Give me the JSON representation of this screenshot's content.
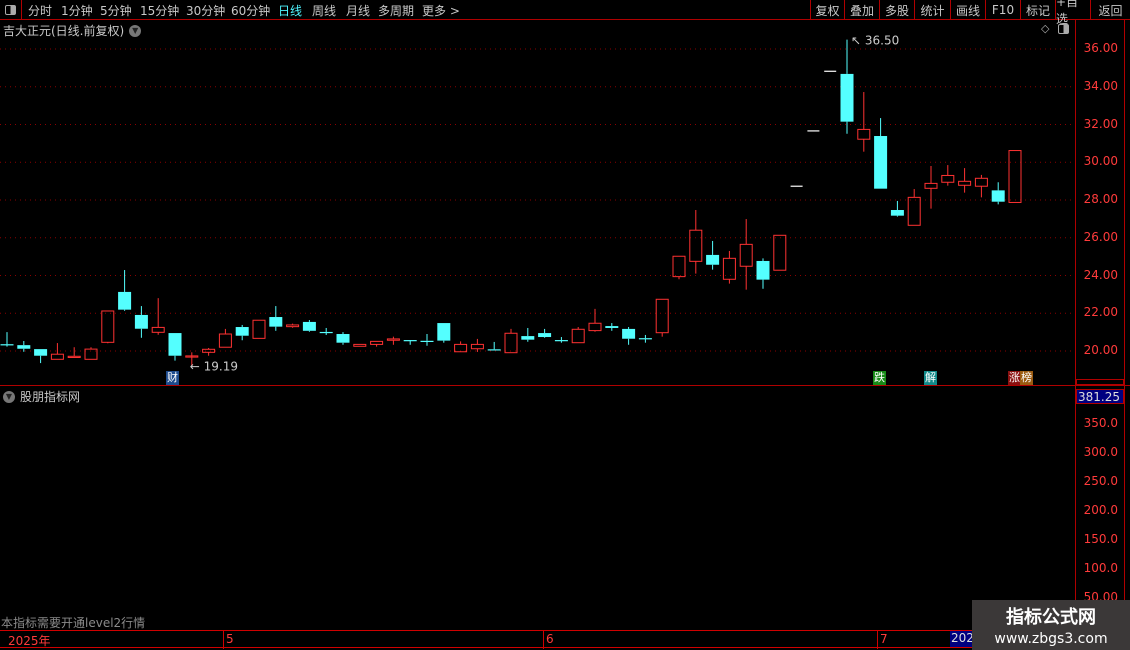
{
  "toolbar": {
    "periods": [
      "分时",
      "1分钟",
      "5分钟",
      "15分钟",
      "30分钟",
      "60分钟",
      "日线",
      "周线",
      "月线",
      "多周期",
      "更多 >"
    ],
    "active_period": "日线",
    "buttons": [
      "复权",
      "叠加",
      "多股",
      "统计",
      "画线",
      "F10",
      "标记",
      "+自选",
      "返回"
    ]
  },
  "main_chart": {
    "title": "吉大正元(日线.前复权)",
    "y_ticks": [
      "36.00",
      "34.00",
      "32.00",
      "30.00",
      "28.00",
      "26.00",
      "24.00",
      "22.00",
      "20.00"
    ],
    "high_label": "36.50",
    "low_label": "19.19",
    "markers": [
      "财",
      "跌",
      "解",
      "涨",
      "榜"
    ],
    "colors": {
      "up": "#ff3232",
      "down": "#54ffff",
      "flat": "#ffffff",
      "grid": "#8b0000"
    }
  },
  "chart_data": {
    "type": "candlestick",
    "ylim": [
      18.6,
      36.9
    ],
    "ohlc": [
      [
        20.36,
        21.0,
        20.23,
        20.35
      ],
      [
        20.31,
        20.53,
        19.96,
        20.12
      ],
      [
        20.1,
        20.1,
        19.36,
        19.75
      ],
      [
        19.56,
        20.42,
        19.56,
        19.83
      ],
      [
        19.67,
        20.2,
        19.67,
        19.72
      ],
      [
        19.56,
        20.2,
        19.56,
        20.1
      ],
      [
        20.46,
        22.12,
        20.41,
        22.12
      ],
      [
        23.13,
        24.29,
        22.13,
        22.19
      ],
      [
        21.91,
        22.38,
        20.7,
        21.18
      ],
      [
        20.99,
        22.8,
        20.86,
        21.25
      ],
      [
        20.95,
        20.95,
        19.49,
        19.75
      ],
      [
        19.73,
        19.93,
        19.19,
        19.74
      ],
      [
        19.93,
        20.16,
        19.75,
        20.09
      ],
      [
        20.2,
        21.17,
        20.2,
        20.9
      ],
      [
        21.27,
        21.38,
        20.57,
        20.81
      ],
      [
        20.67,
        21.63,
        20.67,
        21.63
      ],
      [
        21.8,
        22.38,
        21.07,
        21.29
      ],
      [
        21.29,
        21.45,
        21.23,
        21.38
      ],
      [
        21.54,
        21.64,
        21.02,
        21.07
      ],
      [
        21.01,
        21.22,
        20.85,
        21.0
      ],
      [
        20.9,
        21.0,
        20.33,
        20.44
      ],
      [
        20.25,
        20.35,
        20.25,
        20.35
      ],
      [
        20.35,
        20.51,
        20.23,
        20.51
      ],
      [
        20.57,
        20.76,
        20.33,
        20.64
      ],
      [
        20.58,
        20.58,
        20.33,
        20.57
      ],
      [
        20.54,
        20.9,
        20.28,
        20.53
      ],
      [
        21.48,
        21.48,
        20.44,
        20.55
      ],
      [
        19.96,
        20.51,
        19.96,
        20.35
      ],
      [
        20.12,
        20.64,
        19.95,
        20.35
      ],
      [
        20.09,
        20.48,
        20.04,
        20.04
      ],
      [
        19.91,
        21.17,
        19.91,
        20.94
      ],
      [
        20.79,
        21.22,
        20.49,
        20.6
      ],
      [
        20.95,
        21.17,
        20.7,
        20.74
      ],
      [
        20.58,
        20.74,
        20.44,
        20.57
      ],
      [
        20.44,
        21.27,
        20.44,
        21.15
      ],
      [
        21.08,
        22.23,
        21.02,
        21.47
      ],
      [
        21.32,
        21.48,
        21.07,
        21.22
      ],
      [
        21.17,
        21.27,
        20.33,
        20.65
      ],
      [
        20.68,
        20.85,
        20.44,
        20.67
      ],
      [
        20.97,
        22.74,
        20.76,
        22.74
      ],
      [
        23.94,
        25.02,
        23.8,
        25.02
      ],
      [
        24.75,
        27.47,
        24.1,
        26.4
      ],
      [
        25.09,
        25.83,
        24.31,
        24.57
      ],
      [
        23.8,
        25.3,
        23.57,
        24.91
      ],
      [
        24.49,
        26.99,
        23.25,
        25.65
      ],
      [
        24.77,
        24.91,
        23.3,
        23.78
      ],
      [
        24.28,
        26.13,
        24.28,
        26.13
      ],
      [
        28.73,
        28.73,
        28.73,
        28.73
      ],
      [
        31.66,
        31.66,
        31.66,
        31.66
      ],
      [
        34.82,
        34.82,
        34.82,
        34.82
      ],
      [
        34.68,
        36.5,
        31.51,
        32.15
      ],
      [
        31.22,
        33.72,
        30.56,
        31.74
      ],
      [
        31.39,
        32.34,
        28.6,
        28.6
      ],
      [
        27.47,
        27.95,
        27.12,
        27.17
      ],
      [
        26.66,
        28.58,
        26.66,
        28.14
      ],
      [
        28.62,
        29.8,
        27.54,
        28.88
      ],
      [
        28.94,
        29.85,
        28.76,
        29.3
      ],
      [
        28.78,
        29.69,
        28.39,
        28.99
      ],
      [
        28.73,
        29.33,
        28.14,
        29.15
      ],
      [
        28.51,
        28.94,
        27.77,
        27.91
      ],
      [
        27.87,
        30.62,
        27.87,
        30.62
      ]
    ],
    "y_tick_values": [
      20,
      22,
      24,
      26,
      28,
      30,
      32,
      34,
      36
    ],
    "grid": true
  },
  "indicator_panel": {
    "title": "股朋指标网",
    "current_value": "381.25",
    "y_ticks": [
      "350.0",
      "300.0",
      "250.0",
      "200.0",
      "150.0",
      "100.0",
      "50.00"
    ],
    "notice": "本指标需要开通level2行情"
  },
  "date_axis": {
    "labels": [
      "2025年",
      "5",
      "6",
      "7",
      "202"
    ]
  },
  "watermark": {
    "title": "指标公式网",
    "url": "www.zbgs3.com"
  }
}
